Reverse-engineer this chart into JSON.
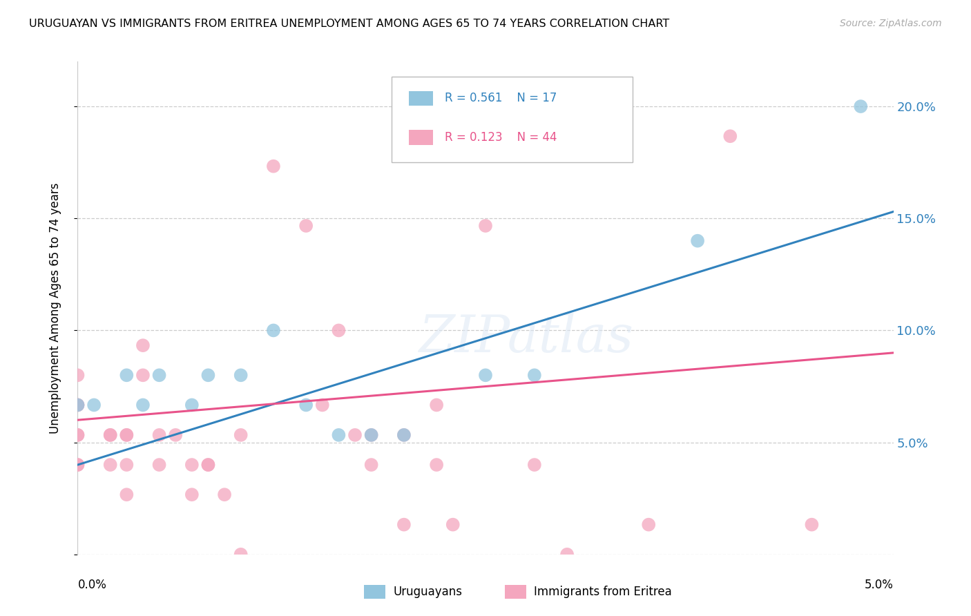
{
  "title": "URUGUAYAN VS IMMIGRANTS FROM ERITREA UNEMPLOYMENT AMONG AGES 65 TO 74 YEARS CORRELATION CHART",
  "source": "Source: ZipAtlas.com",
  "ylabel": "Unemployment Among Ages 65 to 74 years",
  "x_min": 0.0,
  "x_max": 0.05,
  "y_min": 0.0,
  "y_max": 0.22,
  "y_ticks": [
    0.0,
    0.05,
    0.1,
    0.15,
    0.2
  ],
  "y_tick_labels": [
    "",
    "5.0%",
    "10.0%",
    "15.0%",
    "20.0%"
  ],
  "blue_R": "0.561",
  "blue_N": "17",
  "pink_R": "0.123",
  "pink_N": "44",
  "legend_label_blue": "Uruguayans",
  "legend_label_pink": "Immigrants from Eritrea",
  "watermark": "ZIPatlas",
  "blue_color": "#92c5de",
  "pink_color": "#f4a6be",
  "blue_line_color": "#3182bd",
  "pink_line_color": "#e8538a",
  "blue_points": [
    [
      0.0,
      0.0667
    ],
    [
      0.001,
      0.0667
    ],
    [
      0.003,
      0.08
    ],
    [
      0.004,
      0.0667
    ],
    [
      0.005,
      0.08
    ],
    [
      0.007,
      0.0667
    ],
    [
      0.008,
      0.08
    ],
    [
      0.01,
      0.08
    ],
    [
      0.012,
      0.1
    ],
    [
      0.014,
      0.0667
    ],
    [
      0.016,
      0.0533
    ],
    [
      0.018,
      0.0533
    ],
    [
      0.02,
      0.0533
    ],
    [
      0.025,
      0.08
    ],
    [
      0.028,
      0.08
    ],
    [
      0.038,
      0.14
    ],
    [
      0.048,
      0.2
    ]
  ],
  "pink_points": [
    [
      0.0,
      0.0667
    ],
    [
      0.0,
      0.0533
    ],
    [
      0.0,
      0.0667
    ],
    [
      0.0,
      0.0533
    ],
    [
      0.0,
      0.04
    ],
    [
      0.0,
      0.04
    ],
    [
      0.0,
      0.08
    ],
    [
      0.002,
      0.0533
    ],
    [
      0.002,
      0.04
    ],
    [
      0.002,
      0.0533
    ],
    [
      0.003,
      0.0533
    ],
    [
      0.003,
      0.0533
    ],
    [
      0.003,
      0.04
    ],
    [
      0.003,
      0.0267
    ],
    [
      0.004,
      0.0933
    ],
    [
      0.004,
      0.08
    ],
    [
      0.005,
      0.0533
    ],
    [
      0.005,
      0.04
    ],
    [
      0.006,
      0.0533
    ],
    [
      0.007,
      0.04
    ],
    [
      0.007,
      0.0267
    ],
    [
      0.008,
      0.04
    ],
    [
      0.008,
      0.04
    ],
    [
      0.009,
      0.0267
    ],
    [
      0.01,
      0.0533
    ],
    [
      0.01,
      0.0
    ],
    [
      0.012,
      0.1733
    ],
    [
      0.014,
      0.1467
    ],
    [
      0.015,
      0.0667
    ],
    [
      0.016,
      0.1
    ],
    [
      0.017,
      0.0533
    ],
    [
      0.018,
      0.0533
    ],
    [
      0.018,
      0.04
    ],
    [
      0.02,
      0.0533
    ],
    [
      0.02,
      0.0133
    ],
    [
      0.022,
      0.0667
    ],
    [
      0.022,
      0.04
    ],
    [
      0.023,
      0.0133
    ],
    [
      0.025,
      0.1467
    ],
    [
      0.028,
      0.04
    ],
    [
      0.03,
      0.0
    ],
    [
      0.035,
      0.0133
    ],
    [
      0.04,
      0.1867
    ],
    [
      0.045,
      0.0133
    ]
  ],
  "grid_color": "#cccccc",
  "background": "#ffffff",
  "blue_line_x0": 0.0,
  "blue_line_y0": 0.04,
  "blue_line_x1": 0.05,
  "blue_line_y1": 0.153,
  "pink_line_x0": 0.0,
  "pink_line_y0": 0.06,
  "pink_line_x1": 0.05,
  "pink_line_y1": 0.09
}
